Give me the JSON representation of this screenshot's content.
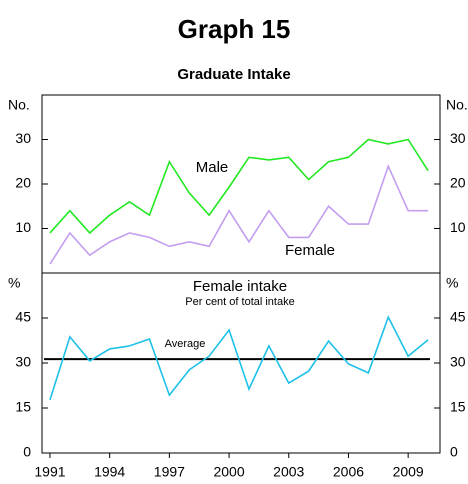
{
  "chart_data": [
    {
      "type": "line",
      "title": "Graph 15",
      "subtitle": "Graduate Intake",
      "y_unit": "No.",
      "x": [
        1991,
        1992,
        1993,
        1994,
        1995,
        1996,
        1997,
        1998,
        1999,
        2000,
        2001,
        2002,
        2003,
        2004,
        2005,
        2006,
        2007,
        2008,
        2009,
        2010
      ],
      "xlim": [
        1990.6,
        2010.6
      ],
      "ylim": [
        0,
        40
      ],
      "yticks": [
        10,
        20,
        30
      ],
      "series": [
        {
          "name": "Male",
          "color": "#22e822",
          "values": [
            9,
            14,
            9,
            13,
            16,
            13,
            25,
            18,
            13,
            19.3,
            26,
            25.4,
            26,
            21,
            25,
            26,
            30,
            29,
            30,
            23
          ]
        },
        {
          "name": "Female",
          "color": "#c49ef0",
          "values": [
            2,
            9,
            4,
            7,
            9,
            8,
            6,
            7,
            6,
            14,
            7,
            14,
            8,
            8,
            15,
            11,
            11,
            24,
            14,
            14
          ]
        }
      ]
    },
    {
      "type": "line",
      "y_unit": "%",
      "annotation": "Per cent of total intake",
      "x": [
        1991,
        1992,
        1993,
        1994,
        1995,
        1996,
        1997,
        1998,
        1999,
        2000,
        2001,
        2002,
        2003,
        2004,
        2005,
        2006,
        2007,
        2008,
        2009,
        2010
      ],
      "xlim": [
        1990.6,
        2010.6
      ],
      "ylim": [
        0,
        60
      ],
      "yticks": [
        0,
        15,
        30,
        45
      ],
      "xticks": [
        1991,
        1994,
        1997,
        2000,
        2003,
        2006,
        2009
      ],
      "reference_line": {
        "label": "Average",
        "value": 31.3,
        "color": "#000000"
      },
      "series": [
        {
          "name": "Female intake",
          "color": "#1ec0e8",
          "values": [
            17.7,
            38.7,
            30.7,
            34.7,
            35.7,
            38,
            19.3,
            27.7,
            32.3,
            41,
            21.3,
            35.7,
            23.3,
            27.3,
            37.3,
            29.7,
            26.7,
            45.3,
            32.3,
            37.7
          ]
        }
      ]
    }
  ]
}
